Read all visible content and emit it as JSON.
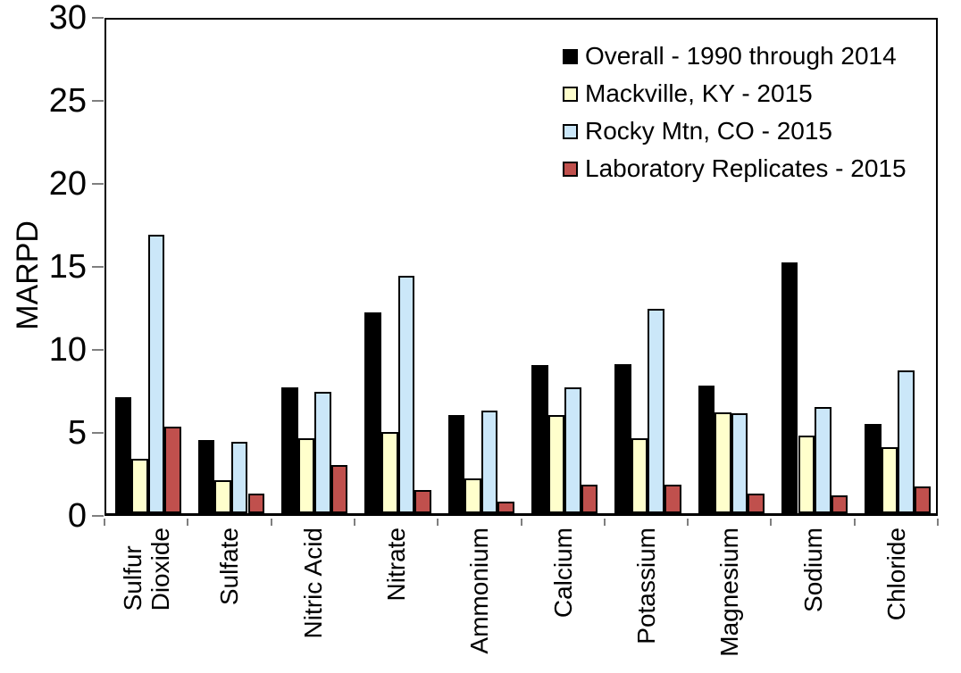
{
  "chart_data": {
    "type": "bar",
    "title": "",
    "xlabel": "",
    "ylabel": "MARPD",
    "ylim": [
      0,
      30
    ],
    "yticks": [
      0,
      5,
      10,
      15,
      20,
      25,
      30
    ],
    "grid": false,
    "legend_position": "top-right-inside",
    "plot_border": true,
    "categories": [
      "Sulfur\nDioxide",
      "Sulfate",
      "Nitric Acid",
      "Nitrate",
      "Ammonium",
      "Calcium",
      "Potassium",
      "Magnesium",
      "Sodium",
      "Chloride"
    ],
    "series": [
      {
        "name": "Overall - 1990 through 2014",
        "color": "#000000",
        "values": [
          7.0,
          4.4,
          7.6,
          12.1,
          5.9,
          8.9,
          9.0,
          7.7,
          15.1,
          5.4
        ]
      },
      {
        "name": "Mackville, KY - 2015",
        "color": "#FFFFCC",
        "values": [
          3.3,
          2.0,
          4.5,
          4.9,
          2.1,
          5.9,
          4.5,
          6.1,
          4.7,
          4.0
        ]
      },
      {
        "name": "Rocky Mtn, CO - 2015",
        "color": "#CBE7F9",
        "values": [
          16.8,
          4.3,
          7.3,
          14.3,
          6.2,
          7.6,
          12.3,
          6.0,
          6.4,
          8.6
        ]
      },
      {
        "name": "Laboratory Replicates - 2015",
        "color": "#C0504D",
        "values": [
          5.2,
          1.2,
          2.9,
          1.4,
          0.7,
          1.7,
          1.7,
          1.2,
          1.1,
          1.6
        ]
      }
    ],
    "colors": {
      "axis_line": "#000000",
      "tick_mark": "#7f7f7f",
      "bar_border": "#000000",
      "background": "#ffffff"
    }
  }
}
